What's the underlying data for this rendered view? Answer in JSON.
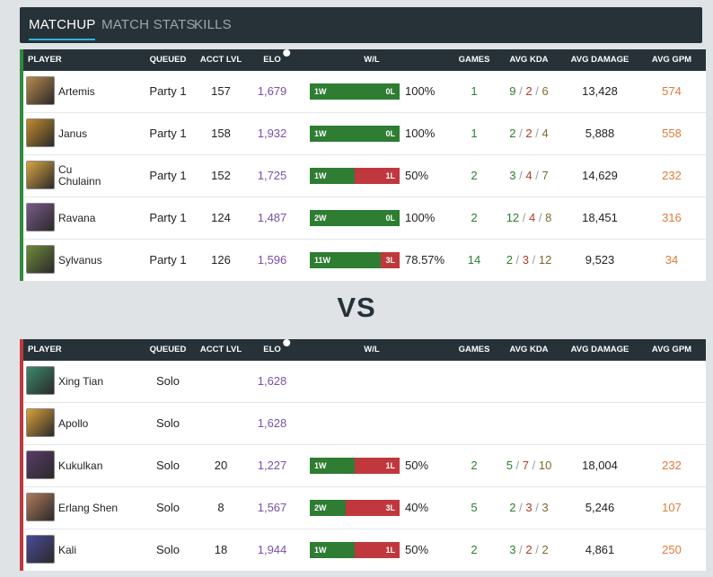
{
  "tabs": [
    {
      "label": "MATCHUP",
      "active": true
    },
    {
      "label": "MATCH STATS",
      "active": false
    },
    {
      "label": "KILLS",
      "active": false
    }
  ],
  "columns": {
    "player": "PLAYER",
    "queued": "QUEUED",
    "acct_lvl": "ACCT LVL",
    "elo": "ELO",
    "wl": "W/L",
    "games": "GAMES",
    "avg_kda": "AVG KDA",
    "avg_damage": "AVG DAMAGE",
    "avg_gpm": "AVG GPM"
  },
  "vs_label": "VS",
  "colors": {
    "win": "#2e7d32",
    "loss": "#c0383d",
    "team1": "#2e8b3a",
    "team2": "#c0383d",
    "elo": "#7b4fa8",
    "gpm": "#e07a3a"
  },
  "team1": [
    {
      "name": "Artemis",
      "avatar_color": "#b8894a",
      "queued": "Party 1",
      "acct_lvl": "157",
      "elo": "1,679",
      "wins": "1W",
      "losses": "0L",
      "win_fraction": 1.0,
      "pct": "100%",
      "games": "1",
      "kda_k": "9",
      "kda_d": "2",
      "kda_a": "6",
      "avg_damage": "13,428",
      "avg_gpm": "574"
    },
    {
      "name": "Janus",
      "avatar_color": "#c28a2a",
      "queued": "Party 1",
      "acct_lvl": "158",
      "elo": "1,932",
      "wins": "1W",
      "losses": "0L",
      "win_fraction": 1.0,
      "pct": "100%",
      "games": "1",
      "kda_k": "2",
      "kda_d": "2",
      "kda_a": "4",
      "avg_damage": "5,888",
      "avg_gpm": "558"
    },
    {
      "name": "Cu Chulainn",
      "name_line1": "Cu",
      "name_line2": "Chulainn",
      "avatar_color": "#d9a441",
      "queued": "Party 1",
      "acct_lvl": "152",
      "elo": "1,725",
      "wins": "1W",
      "losses": "1L",
      "win_fraction": 0.5,
      "pct": "50%",
      "games": "2",
      "kda_k": "3",
      "kda_d": "4",
      "kda_a": "7",
      "avg_damage": "14,629",
      "avg_gpm": "232"
    },
    {
      "name": "Ravana",
      "avatar_color": "#7a5a8a",
      "queued": "Party 1",
      "acct_lvl": "124",
      "elo": "1,487",
      "wins": "2W",
      "losses": "0L",
      "win_fraction": 1.0,
      "pct": "100%",
      "games": "2",
      "kda_k": "12",
      "kda_d": "4",
      "kda_a": "8",
      "avg_damage": "18,451",
      "avg_gpm": "316"
    },
    {
      "name": "Sylvanus",
      "avatar_color": "#6f8a3a",
      "queued": "Party 1",
      "acct_lvl": "126",
      "elo": "1,596",
      "wins": "11W",
      "losses": "3L",
      "win_fraction": 0.7857,
      "pct": "78.57%",
      "games": "14",
      "kda_k": "2",
      "kda_d": "3",
      "kda_a": "12",
      "avg_damage": "9,523",
      "avg_gpm": "34"
    }
  ],
  "team2": [
    {
      "name": "Xing Tian",
      "avatar_color": "#3a8a6a",
      "queued": "Solo",
      "acct_lvl": "",
      "elo": "1,628"
    },
    {
      "name": "Apollo",
      "avatar_color": "#d9a13a",
      "queued": "Solo",
      "acct_lvl": "",
      "elo": "1,628"
    },
    {
      "name": "Kukulkan",
      "avatar_color": "#5a3a6a",
      "queued": "Solo",
      "acct_lvl": "20",
      "elo": "1,227",
      "wins": "1W",
      "losses": "1L",
      "win_fraction": 0.5,
      "pct": "50%",
      "games": "2",
      "kda_k": "5",
      "kda_d": "7",
      "kda_a": "10",
      "avg_damage": "18,004",
      "avg_gpm": "232"
    },
    {
      "name": "Erlang Shen",
      "avatar_color": "#b07a5a",
      "queued": "Solo",
      "acct_lvl": "8",
      "elo": "1,567",
      "wins": "2W",
      "losses": "3L",
      "win_fraction": 0.4,
      "pct": "40%",
      "games": "5",
      "kda_k": "2",
      "kda_d": "3",
      "kda_a": "3",
      "avg_damage": "5,246",
      "avg_gpm": "107"
    },
    {
      "name": "Kali",
      "avatar_color": "#4a4a9a",
      "queued": "Solo",
      "acct_lvl": "18",
      "elo": "1,944",
      "wins": "1W",
      "losses": "1L",
      "win_fraction": 0.5,
      "pct": "50%",
      "games": "2",
      "kda_k": "3",
      "kda_d": "2",
      "kda_a": "2",
      "avg_damage": "4,861",
      "avg_gpm": "250"
    }
  ]
}
